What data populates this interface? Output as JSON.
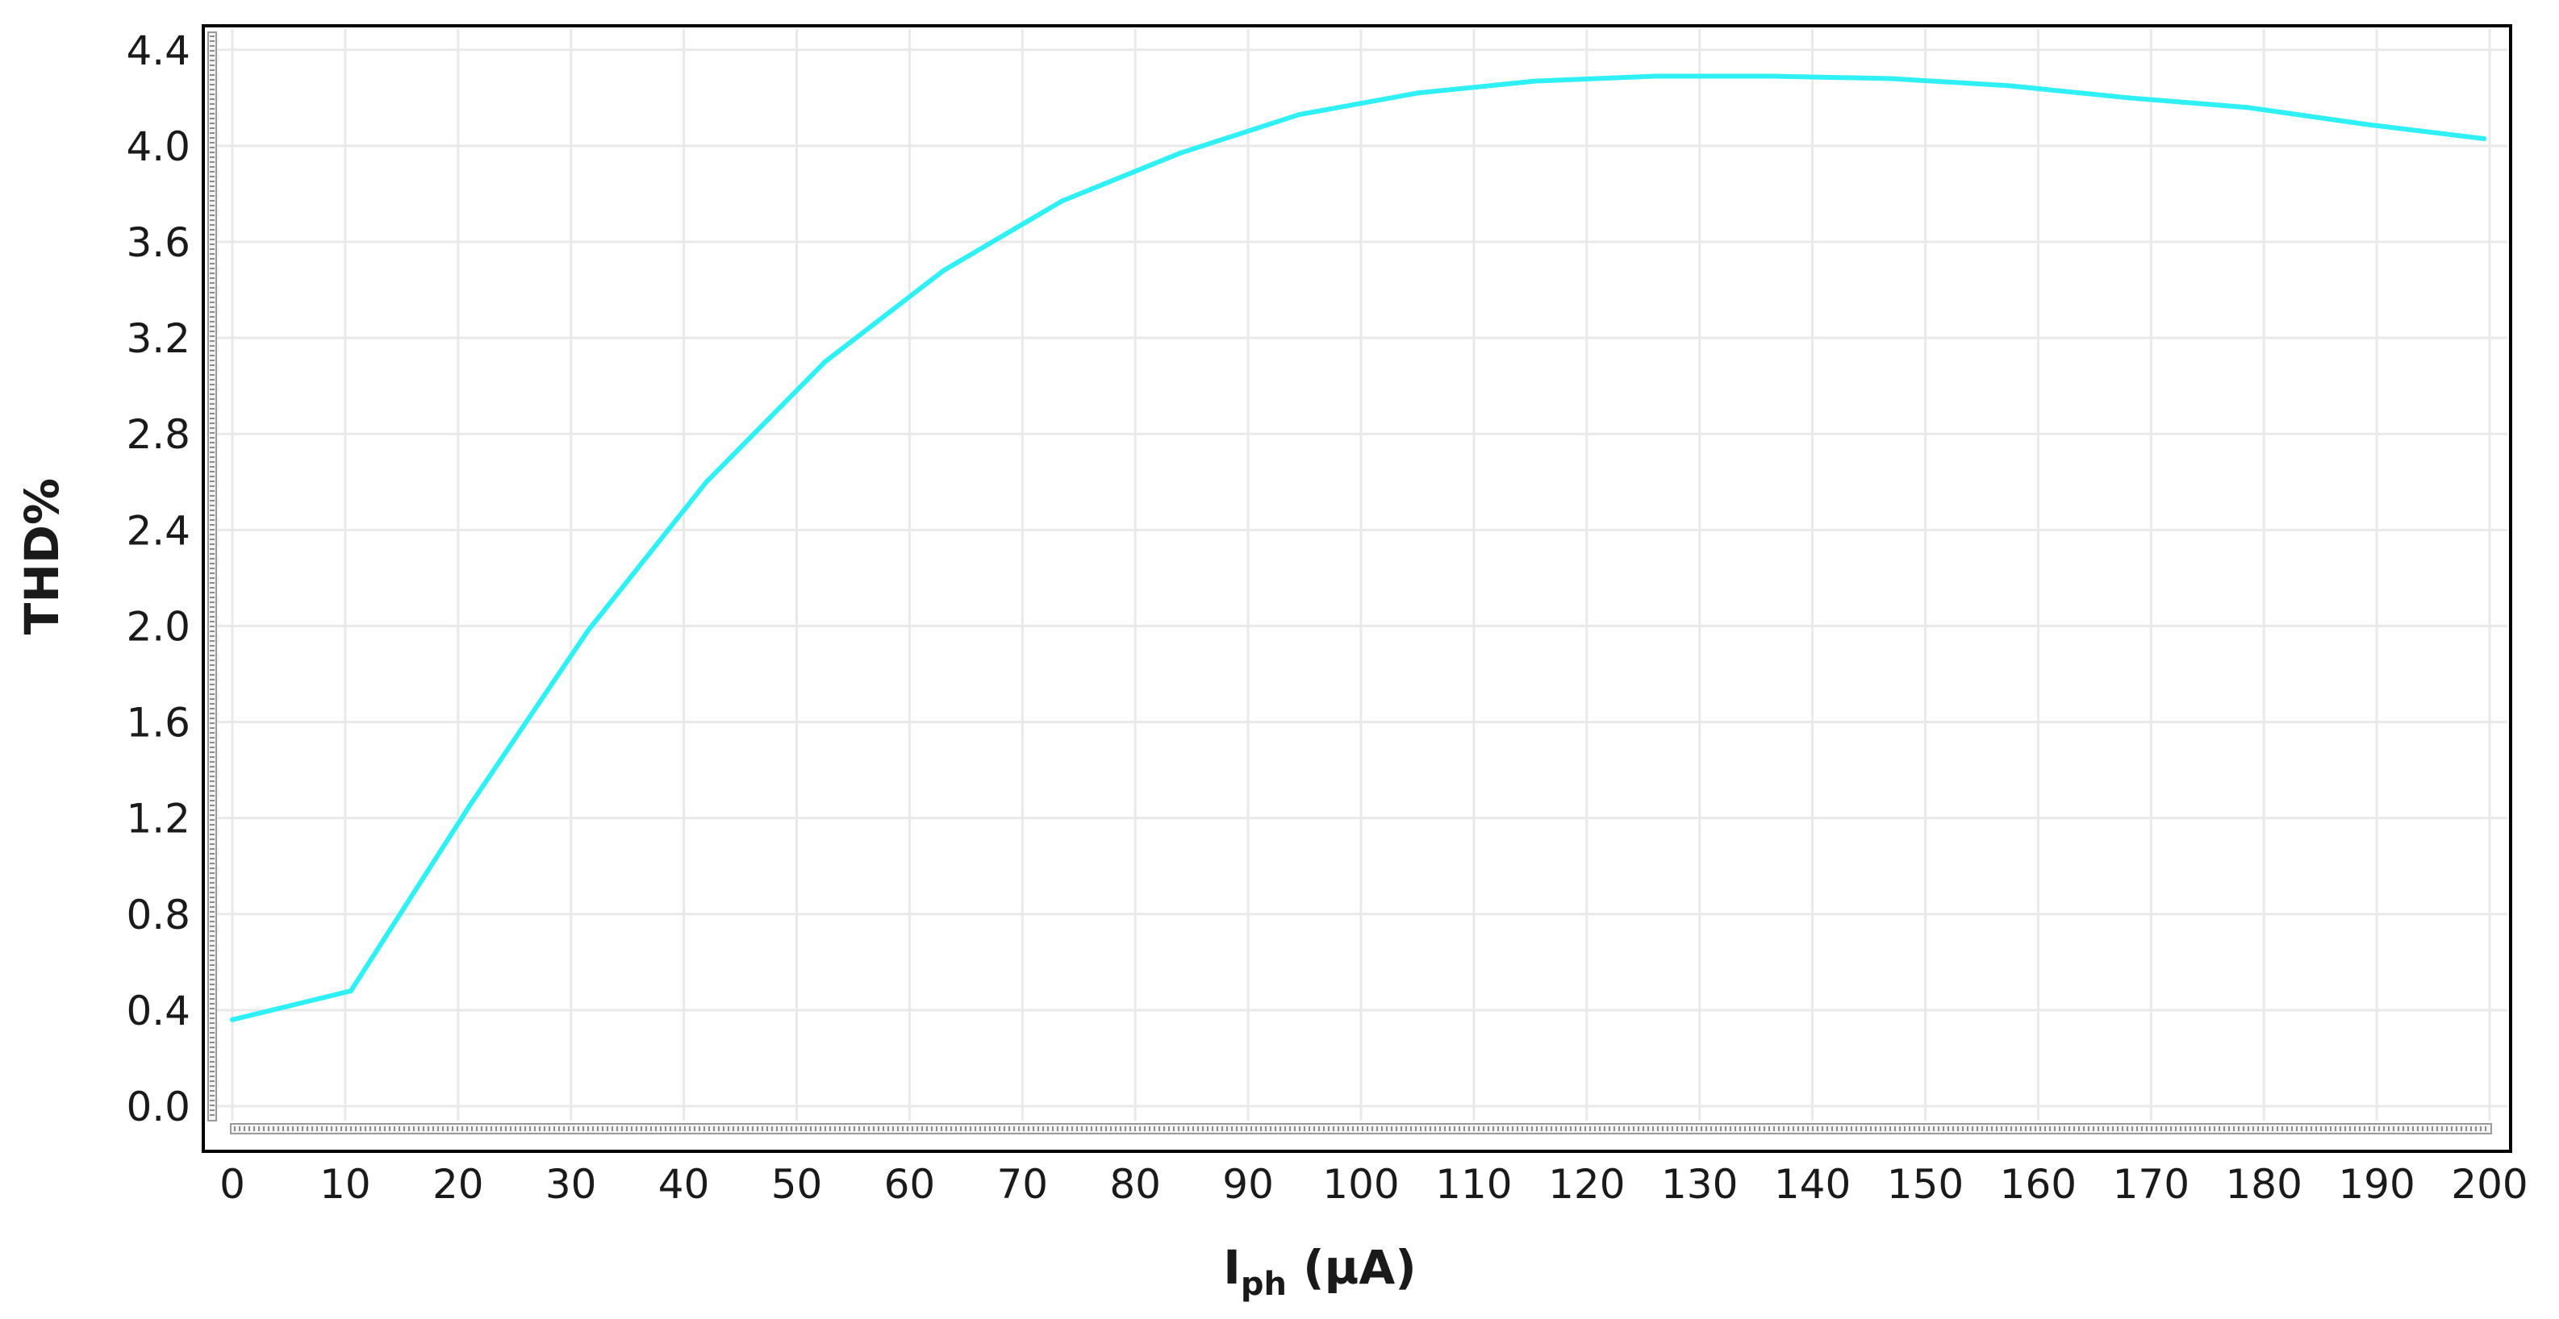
{
  "chart_data": {
    "type": "line",
    "title": "",
    "xlabel": "I",
    "xlabel_subscript": "ph",
    "xlabel_unit": " (µA)",
    "ylabel": "THD%",
    "xlim": [
      0,
      200
    ],
    "ylim": [
      0,
      4.5
    ],
    "xticks": [
      "0",
      "10",
      "20",
      "30",
      "40",
      "50",
      "60",
      "70",
      "80",
      "90",
      "100",
      "110",
      "120",
      "130",
      "140",
      "150",
      "160",
      "170",
      "180",
      "190",
      "200"
    ],
    "yticks": [
      "0.0",
      "0.4",
      "0.8",
      "1.2",
      "1.6",
      "2.0",
      "2.4",
      "2.8",
      "3.2",
      "3.6",
      "4.0",
      "4.4"
    ],
    "grid": true,
    "series": [
      {
        "color": "#2ef0f5",
        "x": [
          0,
          10.5,
          21,
          31.5,
          42,
          52.5,
          63,
          73.5,
          84,
          94.5,
          105,
          115.5,
          126,
          136.5,
          147,
          157.5,
          168,
          178.5,
          189,
          199.5
        ],
        "y": [
          0.36,
          0.48,
          1.25,
          1.98,
          2.6,
          3.1,
          3.48,
          3.77,
          3.97,
          4.13,
          4.22,
          4.27,
          4.29,
          4.29,
          4.28,
          4.25,
          4.2,
          4.16,
          4.09,
          4.03
        ]
      }
    ]
  }
}
